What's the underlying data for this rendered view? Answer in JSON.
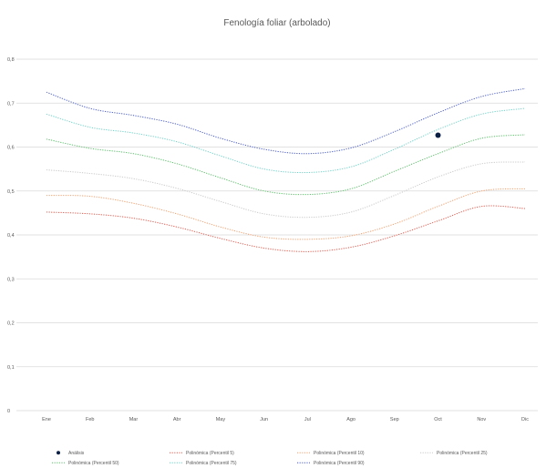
{
  "chart_data": {
    "type": "line",
    "title": "Fenología foliar (arbolado)",
    "xlabel": "",
    "ylabel": "",
    "categories": [
      "Ene",
      "Feb",
      "Mar",
      "Abr",
      "May",
      "Jun",
      "Jul",
      "Ago",
      "Sep",
      "Oct",
      "Nov",
      "Dic"
    ],
    "ylim": [
      0,
      0.8
    ],
    "yticks": [
      0,
      0.1,
      0.2,
      0.3,
      0.4,
      0.5,
      0.6,
      0.7,
      0.8
    ],
    "ytick_labels": [
      "0",
      "0,1",
      "0,2",
      "0,3",
      "0,4",
      "0,5",
      "0,6",
      "0,7",
      "0,8"
    ],
    "grid": true,
    "legend_position": "bottom",
    "series": [
      {
        "name": "Análisis",
        "kind": "marker",
        "color": "#0b1f44",
        "points": [
          {
            "x": "Oct",
            "y": 0.627
          }
        ]
      },
      {
        "name": "Polinómica (Percentil 5)",
        "kind": "dotted",
        "color": "#e05a4e",
        "values": [
          0.452,
          0.448,
          0.438,
          0.418,
          0.392,
          0.37,
          0.362,
          0.372,
          0.398,
          0.432,
          0.465,
          0.46
        ]
      },
      {
        "name": "Polinómica (Percentil 10)",
        "kind": "dotted",
        "color": "#f0a070",
        "values": [
          0.49,
          0.488,
          0.472,
          0.448,
          0.418,
          0.395,
          0.39,
          0.398,
          0.425,
          0.465,
          0.5,
          0.505
        ]
      },
      {
        "name": "Polinómica (Percentil 25)",
        "kind": "dotted",
        "color": "#c9c9c9",
        "values": [
          0.548,
          0.54,
          0.528,
          0.506,
          0.476,
          0.448,
          0.44,
          0.452,
          0.49,
          0.532,
          0.562,
          0.566
        ]
      },
      {
        "name": "Polinómica (Percentil 50)",
        "kind": "dotted",
        "color": "#5cbf6a",
        "values": [
          0.618,
          0.597,
          0.585,
          0.562,
          0.53,
          0.5,
          0.492,
          0.505,
          0.545,
          0.585,
          0.62,
          0.628
        ]
      },
      {
        "name": "Polinómica (Percentil 75)",
        "kind": "dotted",
        "color": "#6fd0c8",
        "values": [
          0.675,
          0.645,
          0.632,
          0.612,
          0.58,
          0.55,
          0.542,
          0.555,
          0.595,
          0.64,
          0.675,
          0.688
        ]
      },
      {
        "name": "Polinómica (Percentil 90)",
        "kind": "dotted",
        "color": "#4a5cc8",
        "values": [
          0.725,
          0.688,
          0.672,
          0.652,
          0.62,
          0.595,
          0.585,
          0.598,
          0.635,
          0.678,
          0.715,
          0.733
        ]
      }
    ]
  },
  "colors": {
    "gridline": "#d9d9d9",
    "axis_text": "#595959"
  }
}
